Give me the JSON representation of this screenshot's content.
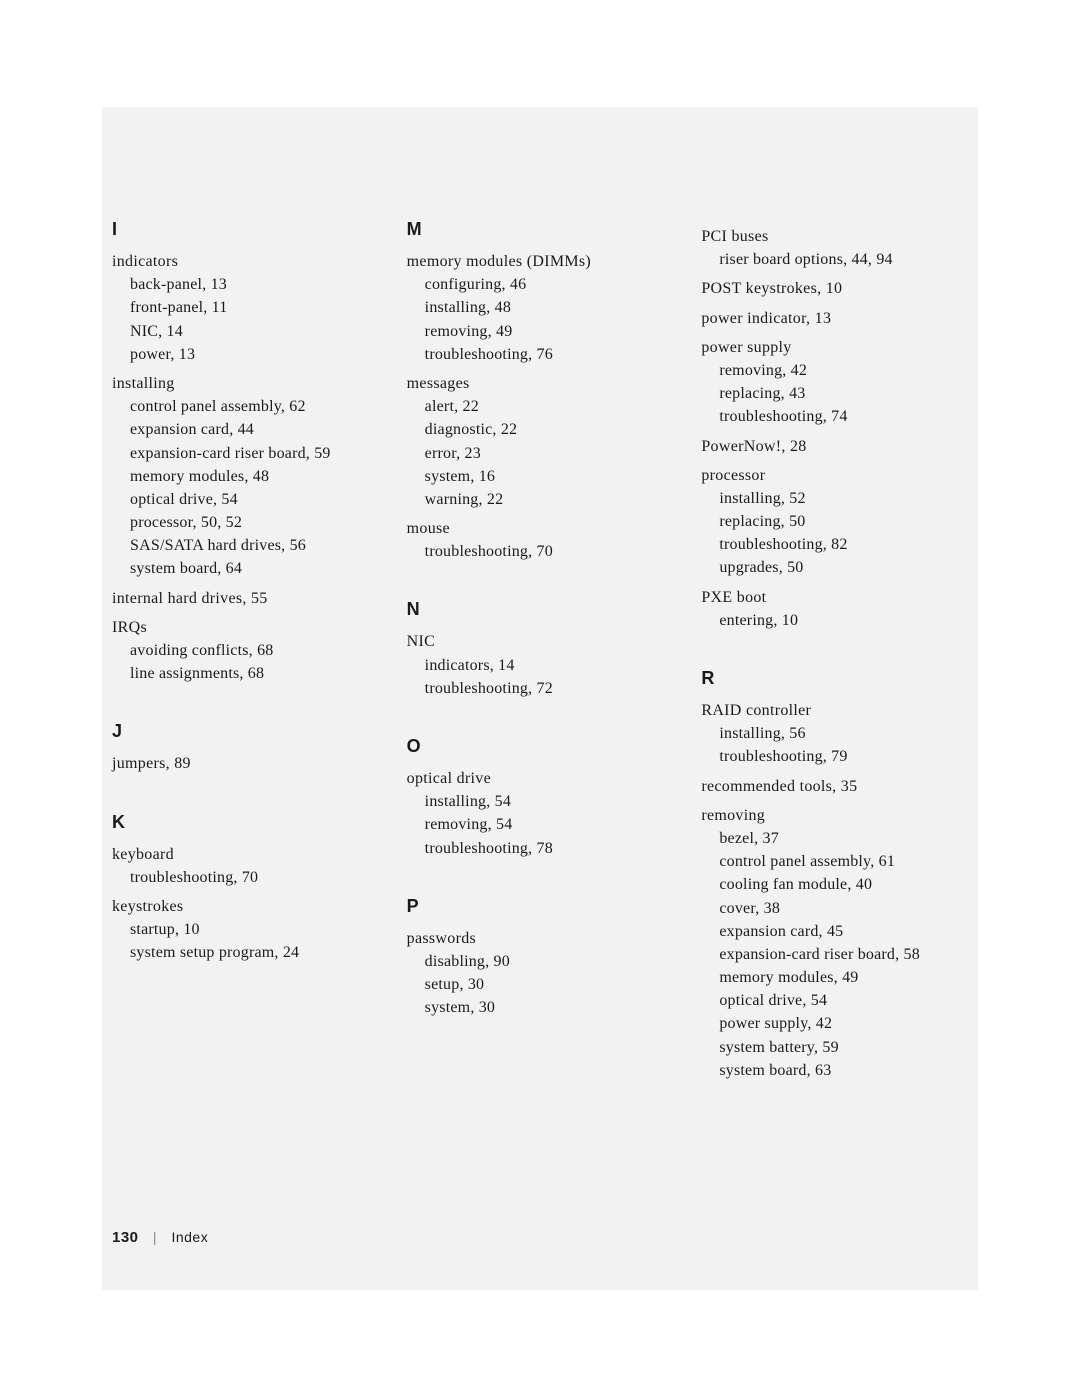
{
  "page": {
    "number": "130",
    "section": "Index",
    "background": "#f2f2f2",
    "body_font": "Georgia, serif",
    "heading_font": "Arial, sans-serif",
    "text_color": "#1a1a1a"
  },
  "columns": [
    {
      "groups": [
        {
          "letter": "I",
          "entries": [
            {
              "term": "indicators",
              "subs": [
                "back-panel, 13",
                "front-panel, 11",
                "NIC, 14",
                "power, 13"
              ]
            },
            {
              "term": "installing",
              "subs": [
                "control panel assembly, 62",
                "expansion card, 44",
                "expansion-card riser board, 59",
                "memory modules, 48",
                "optical drive, 54",
                "processor, 50, 52",
                "SAS/SATA hard drives, 56",
                "system board, 64"
              ]
            },
            {
              "term": "internal hard drives, 55",
              "subs": []
            },
            {
              "term": "IRQs",
              "subs": [
                "avoiding conflicts, 68",
                "line assignments, 68"
              ]
            }
          ]
        },
        {
          "letter": "J",
          "entries": [
            {
              "term": "jumpers, 89",
              "subs": []
            }
          ]
        },
        {
          "letter": "K",
          "entries": [
            {
              "term": "keyboard",
              "subs": [
                "troubleshooting, 70"
              ]
            },
            {
              "term": "keystrokes",
              "subs": [
                "startup, 10",
                "system setup program, 24"
              ]
            }
          ]
        }
      ]
    },
    {
      "groups": [
        {
          "letter": "M",
          "entries": [
            {
              "term": "memory modules (DIMMs)",
              "subs": [
                "configuring, 46",
                "installing, 48",
                "removing, 49",
                "troubleshooting, 76"
              ]
            },
            {
              "term": "messages",
              "subs": [
                "alert, 22",
                "diagnostic, 22",
                "error, 23",
                "system, 16",
                "warning, 22"
              ]
            },
            {
              "term": "mouse",
              "subs": [
                "troubleshooting, 70"
              ]
            }
          ]
        },
        {
          "letter": "N",
          "entries": [
            {
              "term": "NIC",
              "subs": [
                "indicators, 14",
                "troubleshooting, 72"
              ]
            }
          ]
        },
        {
          "letter": "O",
          "entries": [
            {
              "term": "optical drive",
              "subs": [
                "installing, 54",
                "removing, 54",
                "troubleshooting, 78"
              ]
            }
          ]
        },
        {
          "letter": "P",
          "entries": [
            {
              "term": "passwords",
              "subs": [
                "disabling, 90",
                "setup, 30",
                "system, 30"
              ]
            }
          ]
        }
      ]
    },
    {
      "groups": [
        {
          "letter": "",
          "entries": [
            {
              "term": "PCI buses",
              "subs": [
                "riser board options, 44, 94"
              ]
            },
            {
              "term": "POST keystrokes, 10",
              "subs": []
            },
            {
              "term": "power indicator, 13",
              "subs": []
            },
            {
              "term": "power supply",
              "subs": [
                "removing, 42",
                "replacing, 43",
                "troubleshooting, 74"
              ]
            },
            {
              "term": "PowerNow!, 28",
              "subs": []
            },
            {
              "term": "processor",
              "subs": [
                "installing, 52",
                "replacing, 50",
                "troubleshooting, 82",
                "upgrades, 50"
              ]
            },
            {
              "term": "PXE boot",
              "subs": [
                "entering, 10"
              ]
            }
          ]
        },
        {
          "letter": "R",
          "entries": [
            {
              "term": "RAID controller",
              "subs": [
                "installing, 56",
                "troubleshooting, 79"
              ]
            },
            {
              "term": "recommended tools, 35",
              "subs": []
            },
            {
              "term": "removing",
              "subs": [
                "bezel, 37",
                "control panel assembly, 61",
                "cooling fan module, 40",
                "cover, 38",
                "expansion card, 45",
                "expansion-card riser board, 58",
                "memory modules, 49",
                "optical drive, 54",
                "power supply, 42",
                "system battery, 59",
                "system board, 63"
              ]
            }
          ]
        }
      ]
    }
  ]
}
